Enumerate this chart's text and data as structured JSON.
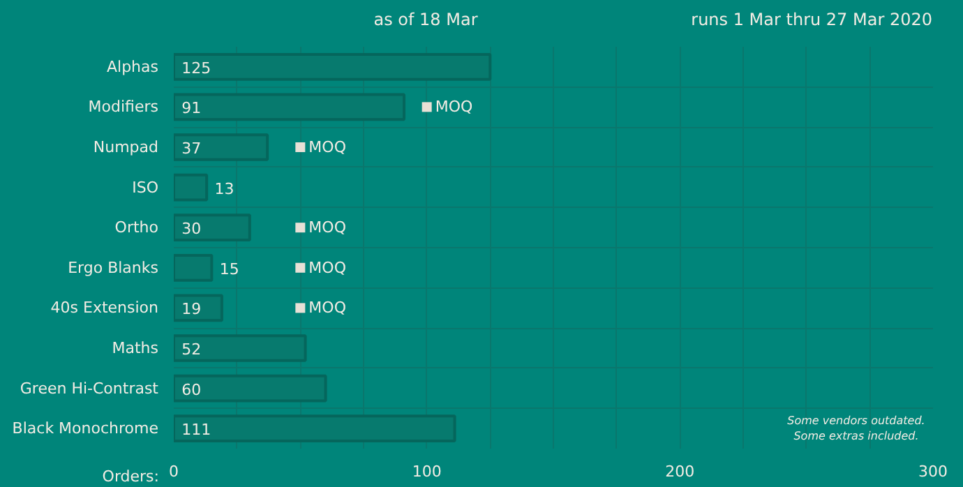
{
  "chart_data": {
    "type": "bar",
    "orientation": "horizontal",
    "title": "as of 18 Mar",
    "subtitle": "runs 1 Mar thru 27 Mar 2020",
    "xlabel": "Orders:",
    "categories": [
      "Alphas",
      "Modifiers",
      "Numpad",
      "ISO",
      "Ortho",
      "Ergo Blanks",
      "40s Extension",
      "Maths",
      "Green Hi-Contrast",
      "Black Monochrome"
    ],
    "series": [
      {
        "color": "#077a6e",
        "values": [
          125,
          91,
          37,
          13,
          30,
          15,
          19,
          52,
          60,
          111
        ],
        "value_labels": [
          "125",
          "91",
          "37",
          "13",
          "30",
          "15",
          "19",
          "52",
          "60",
          "111"
        ]
      },
      {
        "name": "MOQ",
        "type": "scatter",
        "marker": "square",
        "color": "#e8e0d6",
        "values": [
          null,
          100,
          50,
          null,
          50,
          50,
          50,
          null,
          null,
          null
        ]
      }
    ],
    "xlim": [
      0,
      300
    ],
    "xticks": [
      0,
      {
        "value": 25,
        "label": null
      },
      {
        "value": 50,
        "label": null
      },
      {
        "value": 75,
        "label": null
      },
      100,
      {
        "value": 125,
        "label": null
      },
      {
        "value": 150,
        "label": null
      },
      {
        "value": 175,
        "label": null
      },
      200,
      {
        "value": 225,
        "label": null
      },
      {
        "value": 250,
        "label": null
      },
      {
        "value": 275,
        "label": null
      },
      300
    ],
    "grid": true,
    "annotations": [
      "Some vendors outdated.\nSome extras included."
    ]
  }
}
